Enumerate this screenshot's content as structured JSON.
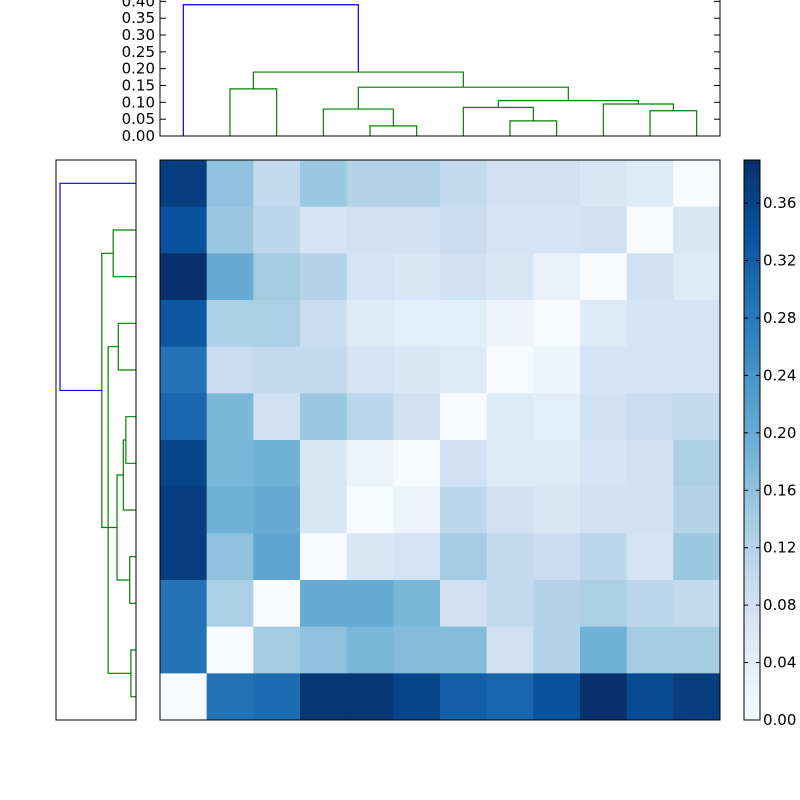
{
  "chart_data": [
    {
      "type": "dendrogram",
      "orientation": "top",
      "ylim": [
        0,
        0.41
      ],
      "yticks": [
        "0.00",
        "0.05",
        "0.10",
        "0.15",
        "0.20",
        "0.25",
        "0.30",
        "0.35",
        "0.40"
      ],
      "link_colors": {
        "root": "#0000ff",
        "cluster": "#008000"
      },
      "leaves": 12,
      "links": [
        {
          "a": 4,
          "b": 5,
          "h": 0.03,
          "color": "#008000"
        },
        {
          "a": 7,
          "b": 8,
          "h": 0.045,
          "color": "#008000"
        },
        {
          "a": 10,
          "b": 11,
          "h": 0.075,
          "color": "#008000"
        },
        {
          "a": 3,
          "b": 4.5,
          "h": 0.08,
          "color": "#008000"
        },
        {
          "a": 6,
          "b": 7.5,
          "h": 0.085,
          "color": "#008000"
        },
        {
          "a": 9,
          "b": 10.5,
          "h": 0.095,
          "color": "#008000"
        },
        {
          "a": 6.75,
          "b": 9.75,
          "h": 0.105,
          "color": "#008000"
        },
        {
          "a": 1,
          "b": 2,
          "h": 0.14,
          "color": "#008000"
        },
        {
          "a": 3.75,
          "b": 8.25,
          "h": 0.145,
          "color": "#008000"
        },
        {
          "a": 1.5,
          "b": 6,
          "h": 0.19,
          "color": "#008000"
        },
        {
          "a": 0,
          "b": 3.75,
          "h": 0.39,
          "color": "#0000ff"
        }
      ]
    },
    {
      "type": "dendrogram",
      "orientation": "left",
      "leaves": 12,
      "links": [
        {
          "a": 10,
          "b": 11,
          "h": 0.02,
          "color": "#008000"
        },
        {
          "a": 8,
          "b": 9,
          "h": 0.025,
          "color": "#008000"
        },
        {
          "a": 5,
          "b": 6,
          "h": 0.04,
          "color": "#008000"
        },
        {
          "a": 5.5,
          "b": 7,
          "h": 0.05,
          "color": "#008000"
        },
        {
          "a": 3,
          "b": 4,
          "h": 0.07,
          "color": "#008000"
        },
        {
          "a": 6.25,
          "b": 8.5,
          "h": 0.075,
          "color": "#008000"
        },
        {
          "a": 1,
          "b": 2,
          "h": 0.09,
          "color": "#008000"
        },
        {
          "a": 3.5,
          "b": 10.5,
          "h": 0.11,
          "color": "#008000"
        },
        {
          "a": 1.5,
          "b": 7.375,
          "h": 0.135,
          "color": "#008000"
        },
        {
          "a": 0,
          "b": 4.4375,
          "h": 0.3,
          "color": "#0000ff"
        }
      ]
    },
    {
      "type": "heatmap",
      "colormap": "Blues",
      "vmin": 0,
      "vmax": 0.39,
      "colorbar_ticks": [
        "0.00",
        "0.04",
        "0.08",
        "0.12",
        "0.16",
        "0.20",
        "0.24",
        "0.28",
        "0.32",
        "0.36"
      ],
      "rows": [
        [
          0.37,
          0.16,
          0.1,
          0.15,
          0.12,
          0.12,
          0.1,
          0.08,
          0.08,
          0.06,
          0.05,
          0.0
        ],
        [
          0.34,
          0.15,
          0.11,
          0.07,
          0.08,
          0.08,
          0.09,
          0.07,
          0.07,
          0.08,
          0.0,
          0.06
        ],
        [
          0.39,
          0.2,
          0.14,
          0.12,
          0.07,
          0.06,
          0.08,
          0.06,
          0.03,
          0.0,
          0.08,
          0.05
        ],
        [
          0.33,
          0.13,
          0.13,
          0.09,
          0.05,
          0.04,
          0.04,
          0.02,
          0.0,
          0.05,
          0.07,
          0.07
        ],
        [
          0.29,
          0.09,
          0.1,
          0.1,
          0.07,
          0.06,
          0.05,
          0.0,
          0.02,
          0.07,
          0.07,
          0.07
        ],
        [
          0.31,
          0.18,
          0.08,
          0.15,
          0.11,
          0.08,
          0.0,
          0.05,
          0.04,
          0.08,
          0.09,
          0.1
        ],
        [
          0.36,
          0.18,
          0.19,
          0.06,
          0.02,
          0.0,
          0.08,
          0.05,
          0.05,
          0.07,
          0.08,
          0.13
        ],
        [
          0.37,
          0.19,
          0.2,
          0.06,
          0.0,
          0.02,
          0.11,
          0.08,
          0.06,
          0.08,
          0.08,
          0.12
        ],
        [
          0.37,
          0.16,
          0.21,
          0.0,
          0.06,
          0.07,
          0.14,
          0.1,
          0.09,
          0.11,
          0.07,
          0.15
        ],
        [
          0.29,
          0.13,
          0.0,
          0.2,
          0.2,
          0.18,
          0.08,
          0.1,
          0.12,
          0.13,
          0.11,
          0.1
        ],
        [
          0.29,
          0.0,
          0.14,
          0.16,
          0.18,
          0.17,
          0.17,
          0.08,
          0.12,
          0.19,
          0.14,
          0.14
        ],
        [
          0.0,
          0.29,
          0.3,
          0.38,
          0.38,
          0.36,
          0.32,
          0.31,
          0.34,
          0.39,
          0.35,
          0.37
        ]
      ]
    }
  ]
}
